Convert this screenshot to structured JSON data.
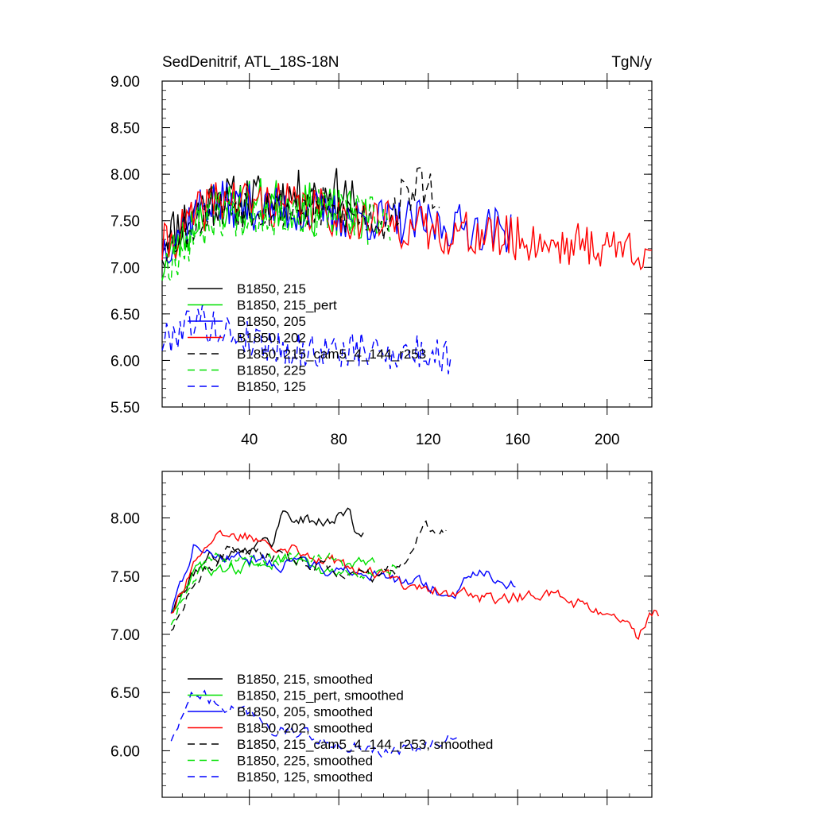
{
  "chart_data": [
    {
      "type": "line",
      "title": "SedDenitrif, ATL_18S-18N",
      "units": "TgN/y",
      "xlim": [
        1,
        220
      ],
      "ylim": [
        5.5,
        9.0
      ],
      "y_ticks": [
        "5.50",
        "6.00",
        "6.50",
        "7.00",
        "7.50",
        "8.00",
        "8.50",
        "9.00"
      ],
      "x_ticks": [
        "40",
        "80",
        "120",
        "160",
        "200"
      ],
      "legend_placement": "bottom-left",
      "series": [
        {
          "name": "B1850, 215",
          "color": "#000000",
          "dash": "solid",
          "start": 1,
          "length": 88,
          "mean": 7.6,
          "amp": 0.28,
          "seed": 11,
          "knots": [
            [
              1,
              7.3
            ],
            [
              20,
              7.7
            ],
            [
              50,
              7.75
            ],
            [
              82,
              7.8
            ],
            [
              88,
              7.6
            ]
          ]
        },
        {
          "name": "B1850, 215_pert",
          "color": "#00e000",
          "dash": "solid",
          "start": 1,
          "length": 93,
          "mean": 7.6,
          "amp": 0.28,
          "seed": 23,
          "knots": [
            [
              1,
              7.0
            ],
            [
              20,
              7.65
            ],
            [
              50,
              7.7
            ],
            [
              75,
              7.6
            ],
            [
              93,
              7.5
            ]
          ]
        },
        {
          "name": "B1850, 205",
          "color": "#0000ff",
          "dash": "solid",
          "start": 1,
          "length": 157,
          "mean": 7.5,
          "amp": 0.25,
          "seed": 37,
          "knots": [
            [
              1,
              7.2
            ],
            [
              20,
              7.7
            ],
            [
              60,
              7.6
            ],
            [
              100,
              7.5
            ],
            [
              157,
              7.4
            ]
          ]
        },
        {
          "name": "B1850, 202",
          "color": "#ff0000",
          "dash": "solid",
          "start": 1,
          "length": 220,
          "mean": 7.4,
          "amp": 0.25,
          "seed": 41,
          "knots": [
            [
              1,
              7.2
            ],
            [
              25,
              7.75
            ],
            [
              60,
              7.65
            ],
            [
              120,
              7.4
            ],
            [
              180,
              7.25
            ],
            [
              220,
              7.2
            ]
          ]
        },
        {
          "name": "B1850, 215_cam5_4_144_r253",
          "color": "#000000",
          "dash": "dashed",
          "start": 1,
          "length": 125,
          "mean": 7.6,
          "amp": 0.25,
          "seed": 53,
          "knots": [
            [
              1,
              7.2
            ],
            [
              25,
              7.7
            ],
            [
              80,
              7.6
            ],
            [
              100,
              7.5
            ],
            [
              115,
              7.9
            ],
            [
              125,
              7.8
            ]
          ]
        },
        {
          "name": "B1850, 225",
          "color": "#00e000",
          "dash": "dashed",
          "start": 1,
          "length": 103,
          "mean": 7.55,
          "amp": 0.27,
          "seed": 67,
          "knots": [
            [
              1,
              7.0
            ],
            [
              25,
              7.6
            ],
            [
              60,
              7.6
            ],
            [
              103,
              7.5
            ]
          ]
        },
        {
          "name": "B1850, 125",
          "color": "#0000ff",
          "dash": "dashed",
          "start": 1,
          "length": 130,
          "mean": 6.15,
          "amp": 0.2,
          "seed": 79,
          "knots": [
            [
              1,
              6.2
            ],
            [
              15,
              6.45
            ],
            [
              30,
              6.3
            ],
            [
              60,
              6.1
            ],
            [
              100,
              6.1
            ],
            [
              130,
              6.05
            ]
          ]
        }
      ]
    },
    {
      "type": "line",
      "title": "",
      "xlim": [
        1,
        220
      ],
      "ylim": [
        5.6,
        8.4
      ],
      "y_ticks": [
        "6.00",
        "6.50",
        "7.00",
        "7.50",
        "8.00"
      ],
      "x_ticks": [],
      "legend_placement": "bottom-left",
      "series": [
        {
          "name": "B1850, 215, smoothed",
          "color": "#000000",
          "dash": "solid",
          "start": 5,
          "length": 87,
          "seed": 111,
          "knots": [
            [
              5,
              7.2
            ],
            [
              20,
              7.65
            ],
            [
              40,
              7.75
            ],
            [
              50,
              7.8
            ],
            [
              55,
              8.05
            ],
            [
              70,
              7.95
            ],
            [
              85,
              8.05
            ],
            [
              87,
              7.9
            ]
          ]
        },
        {
          "name": "B1850, 215_pert, smoothed",
          "color": "#00e000",
          "dash": "solid",
          "start": 5,
          "length": 92,
          "seed": 123,
          "knots": [
            [
              5,
              7.2
            ],
            [
              15,
              7.55
            ],
            [
              30,
              7.55
            ],
            [
              45,
              7.6
            ],
            [
              60,
              7.65
            ],
            [
              75,
              7.55
            ],
            [
              92,
              7.6
            ]
          ]
        },
        {
          "name": "B1850, 205, smoothed",
          "color": "#0000ff",
          "dash": "solid",
          "start": 5,
          "length": 155,
          "seed": 137,
          "knots": [
            [
              5,
              7.2
            ],
            [
              15,
              7.75
            ],
            [
              40,
              7.65
            ],
            [
              80,
              7.55
            ],
            [
              110,
              7.45
            ],
            [
              130,
              7.35
            ],
            [
              145,
              7.55
            ],
            [
              155,
              7.45
            ]
          ]
        },
        {
          "name": "B1850, 202, smoothed",
          "color": "#ff0000",
          "dash": "solid",
          "start": 5,
          "length": 219,
          "seed": 141,
          "knots": [
            [
              5,
              7.2
            ],
            [
              20,
              7.8
            ],
            [
              40,
              7.85
            ],
            [
              60,
              7.75
            ],
            [
              80,
              7.6
            ],
            [
              100,
              7.5
            ],
            [
              120,
              7.4
            ],
            [
              150,
              7.3
            ],
            [
              170,
              7.35
            ],
            [
              190,
              7.25
            ],
            [
              210,
              7.05
            ],
            [
              214,
              6.95
            ],
            [
              219,
              7.2
            ]
          ]
        },
        {
          "name": "B1850, 215_cam5_4_144_r253, smoothed",
          "color": "#000000",
          "dash": "dashed",
          "start": 5,
          "length": 124,
          "seed": 153,
          "knots": [
            [
              5,
              7.05
            ],
            [
              15,
              7.45
            ],
            [
              30,
              7.7
            ],
            [
              60,
              7.65
            ],
            [
              95,
              7.5
            ],
            [
              110,
              7.6
            ],
            [
              118,
              8.0
            ],
            [
              124,
              7.85
            ]
          ]
        },
        {
          "name": "B1850, 225, smoothed",
          "color": "#00e000",
          "dash": "dashed",
          "start": 5,
          "length": 102,
          "seed": 167,
          "knots": [
            [
              5,
              7.1
            ],
            [
              20,
              7.65
            ],
            [
              50,
              7.65
            ],
            [
              75,
              7.7
            ],
            [
              90,
              7.5
            ],
            [
              102,
              7.6
            ]
          ]
        },
        {
          "name": "B1850, 125, smoothed",
          "color": "#0000ff",
          "dash": "dashed",
          "start": 5,
          "length": 129,
          "seed": 179,
          "knots": [
            [
              5,
              6.1
            ],
            [
              15,
              6.5
            ],
            [
              30,
              6.4
            ],
            [
              50,
              6.2
            ],
            [
              80,
              6.05
            ],
            [
              110,
              6.0
            ],
            [
              129,
              6.1
            ]
          ]
        }
      ]
    }
  ]
}
